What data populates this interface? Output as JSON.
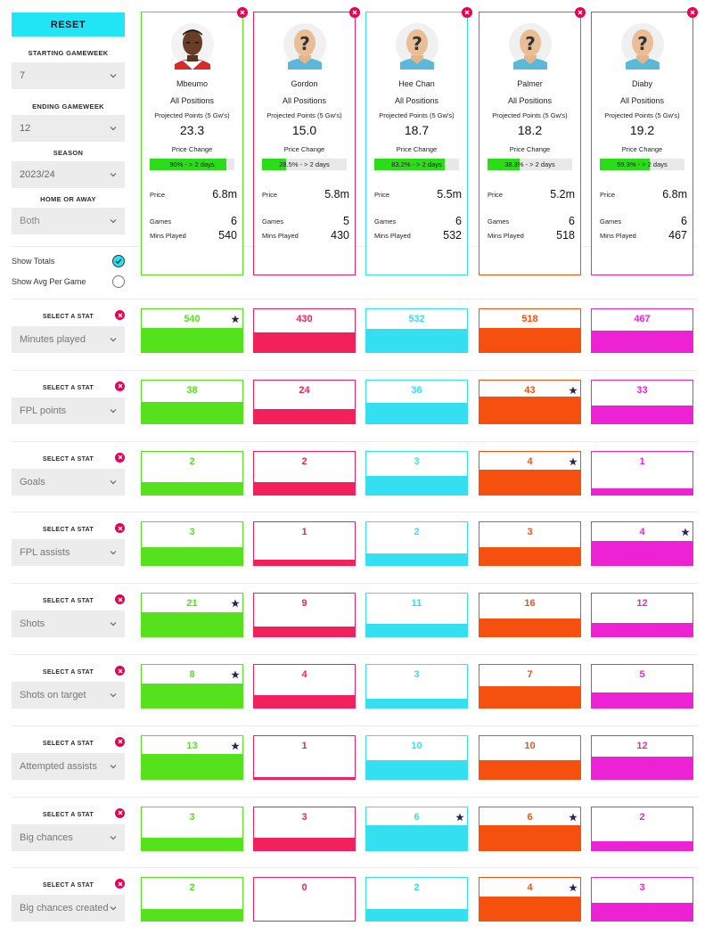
{
  "sidebar": {
    "reset_label": "RESET",
    "starting_gameweek": {
      "label": "STARTING GAMEWEEK",
      "value": "7"
    },
    "ending_gameweek": {
      "label": "ENDING GAMEWEEK",
      "value": "12"
    },
    "season": {
      "label": "SEASON",
      "value": "2023/24"
    },
    "home_or_away": {
      "label": "HOME OR AWAY",
      "value": "Both"
    },
    "show_totals": {
      "label": "Show Totals",
      "checked": true
    },
    "show_avg": {
      "label": "Show Avg Per Game",
      "checked": false
    }
  },
  "labels": {
    "projected_points": "Projected Points (5 Gw's)",
    "price_change": "Price Change",
    "price": "Price",
    "games": "Games",
    "mins_played": "Mins Played",
    "select_stat": "SELECT A STAT"
  },
  "colors": {
    "accent": "#21e5f4",
    "close": "#e90052",
    "price_bar": "#2bdc19",
    "star": "#2a2450"
  },
  "players": [
    {
      "name": "Mbeumo",
      "position": "All Positions",
      "projected_points": "23.3",
      "price_change_text": "90% - > 2 days",
      "price_change_pct": 0.9,
      "price": "6.8m",
      "games": "6",
      "mins_played": "540",
      "color": "#55e21d",
      "avatar": "photo"
    },
    {
      "name": "Gordon",
      "position": "All Positions",
      "projected_points": "15.0",
      "price_change_text": "28.5% - > 2 days",
      "price_change_pct": 0.285,
      "price": "5.8m",
      "games": "5",
      "mins_played": "430",
      "color": "#f2205b",
      "avatar": "placeholder"
    },
    {
      "name": "Hee Chan",
      "position": "All Positions",
      "projected_points": "18.7",
      "price_change_text": "83.2% - > 2 days",
      "price_change_pct": 0.832,
      "price": "5.5m",
      "games": "6",
      "mins_played": "532",
      "color": "#34e0f0",
      "avatar": "placeholder"
    },
    {
      "name": "Palmer",
      "position": "All Positions",
      "projected_points": "18.2",
      "price_change_text": "38.3% - > 2 days",
      "price_change_pct": 0.383,
      "price": "5.2m",
      "games": "6",
      "mins_played": "518",
      "color": "#f6500e",
      "avatar": "placeholder"
    },
    {
      "name": "Diaby",
      "position": "All Positions",
      "projected_points": "19.2",
      "price_change_text": "59.3% - > 2 days",
      "price_change_pct": 0.593,
      "price": "6.8m",
      "games": "6",
      "mins_played": "467",
      "color": "#ee22d5",
      "avatar": "placeholder"
    }
  ],
  "stats": [
    {
      "name": "Minutes played",
      "values": [
        "540",
        "430",
        "532",
        "518",
        "467"
      ],
      "fill": [
        0.56,
        0.45,
        0.55,
        0.56,
        0.49
      ],
      "star": 0
    },
    {
      "name": "FPL points",
      "values": [
        "38",
        "24",
        "36",
        "43",
        "33"
      ],
      "fill": [
        0.5,
        0.32,
        0.48,
        0.62,
        0.42
      ],
      "star": 3
    },
    {
      "name": "Goals",
      "values": [
        "2",
        "2",
        "3",
        "4",
        "1"
      ],
      "fill": [
        0.28,
        0.28,
        0.42,
        0.57,
        0.14
      ],
      "star": 3
    },
    {
      "name": "FPL assists",
      "values": [
        "3",
        "1",
        "2",
        "3",
        "4"
      ],
      "fill": [
        0.42,
        0.14,
        0.28,
        0.42,
        0.57
      ],
      "star": 4
    },
    {
      "name": "Shots",
      "values": [
        "21",
        "9",
        "11",
        "16",
        "12"
      ],
      "fill": [
        0.57,
        0.24,
        0.3,
        0.43,
        0.32
      ],
      "star": 0
    },
    {
      "name": "Shots on target",
      "values": [
        "8",
        "4",
        "3",
        "7",
        "5"
      ],
      "fill": [
        0.57,
        0.29,
        0.21,
        0.5,
        0.36
      ],
      "star": 0
    },
    {
      "name": "Attempted assists",
      "values": [
        "13",
        "1",
        "10",
        "10",
        "12"
      ],
      "fill": [
        0.57,
        0.04,
        0.44,
        0.44,
        0.52
      ],
      "star": 0
    },
    {
      "name": "Big chances",
      "values": [
        "3",
        "3",
        "6",
        "6",
        "2"
      ],
      "fill": [
        0.28,
        0.28,
        0.57,
        0.57,
        0.19
      ],
      "star": [
        2,
        3
      ]
    },
    {
      "name": "Big chances created",
      "values": [
        "2",
        "0",
        "2",
        "4",
        "3"
      ],
      "fill": [
        0.28,
        0.0,
        0.28,
        0.57,
        0.42
      ],
      "star": 3
    }
  ]
}
